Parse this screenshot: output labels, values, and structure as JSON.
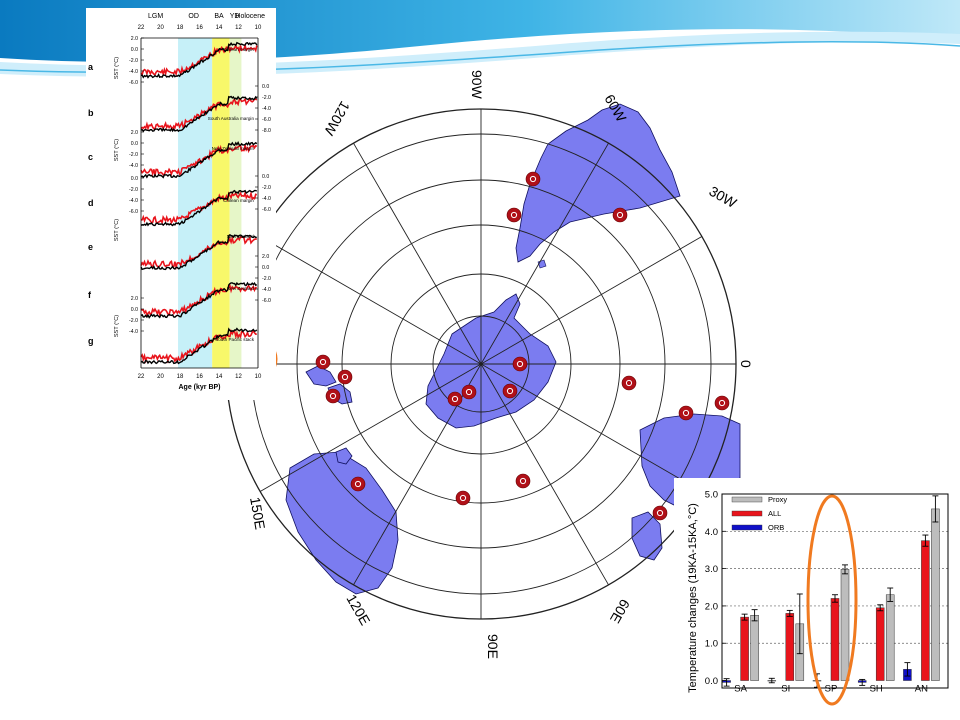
{
  "map": {
    "lon_labels": [
      "90W",
      "60W",
      "30W",
      "0",
      "60E",
      "90E",
      "120E",
      "150E",
      "120W"
    ],
    "sites": [
      {
        "name": "site-1"
      },
      {
        "name": "site-2"
      },
      {
        "name": "site-3"
      },
      {
        "name": "site-4"
      },
      {
        "name": "site-5"
      },
      {
        "name": "site-6"
      },
      {
        "name": "site-7"
      },
      {
        "name": "site-8"
      },
      {
        "name": "site-9"
      },
      {
        "name": "site-10"
      },
      {
        "name": "site-11"
      },
      {
        "name": "site-12"
      },
      {
        "name": "site-13"
      },
      {
        "name": "site-14"
      },
      {
        "name": "site-15"
      },
      {
        "name": "site-16"
      },
      {
        "name": "site-17"
      }
    ],
    "colors": {
      "land": "#7b7cf0",
      "sites": "#b01018",
      "highlight": "#f07a20"
    }
  },
  "stack": {
    "period_labels": [
      "LGM",
      "OD",
      "BA",
      "YD",
      "Holocene"
    ],
    "top_ticks": [
      "22",
      "20",
      "18",
      "16",
      "14",
      "12",
      "10"
    ],
    "bottom_ticks": [
      "22",
      "20",
      "18",
      "16",
      "14",
      "12",
      "10"
    ],
    "xlabel": "Age (kyr BP)",
    "panel_letters": [
      "a",
      "b",
      "c",
      "d",
      "e",
      "f",
      "g"
    ],
    "panel_labels": [
      "Chilean margin",
      "South Australia margin",
      "New Zealand margin",
      "Chilean margin",
      "New Zealand",
      "New Zealand",
      "South Pacific stack"
    ],
    "ylabel": "SST (°C)",
    "left_axes": [
      {
        "ticks": [
          "2.0",
          "0.0",
          "-2.0",
          "-4.0",
          "-6.0"
        ]
      },
      {
        "ticks": [
          "2.0",
          "0.0",
          "-2.0",
          "-4.0"
        ]
      },
      {
        "ticks": [
          "0.0",
          "-2.0",
          "-4.0",
          "-6.0"
        ]
      },
      {
        "ticks": [
          "2.0",
          "0.0",
          "-2.0",
          "-4.0"
        ]
      }
    ],
    "right_axes": [
      {
        "ticks": [
          "0.0",
          "-2.0",
          "-4.0",
          "-6.0",
          "-8.0"
        ]
      },
      {
        "ticks": [
          "0.0",
          "-2.0",
          "-4.0",
          "-6.0"
        ]
      },
      {
        "ticks": [
          "2.0",
          "0.0",
          "-2.0",
          "-4.0",
          "-6.0"
        ]
      }
    ],
    "colors": {
      "model": "#e8141c",
      "proxy": "#000000",
      "lgm_shade": "#c6f0f8",
      "ba_shade": "#f8f86a",
      "yd_shade": "#e6f6c8"
    }
  },
  "chart_data": {
    "type": "bar",
    "categories": [
      "SA",
      "SI",
      "SP",
      "SH",
      "AN"
    ],
    "ylabel": "Temperature changes (19KA-15KA,°C)",
    "ylim": [
      -0.2,
      5.0
    ],
    "yticks": [
      "0.0",
      "1.0",
      "2.0",
      "3.0",
      "4.0",
      "5.0"
    ],
    "legend_placement": "top-left",
    "series": [
      {
        "name": "Proxy",
        "color": "#bdbdbd",
        "values": [
          1.75,
          1.52,
          2.98,
          2.3,
          4.6
        ],
        "err": [
          0.15,
          0.8,
          0.12,
          0.18,
          0.35
        ]
      },
      {
        "name": "ALL",
        "color": "#e8141c",
        "values": [
          1.7,
          1.8,
          2.2,
          1.95,
          3.75
        ],
        "err": [
          0.08,
          0.08,
          0.1,
          0.08,
          0.15
        ]
      },
      {
        "name": "ORB",
        "color": "#1010c8",
        "values": [
          -0.05,
          0.0,
          0.0,
          -0.05,
          0.3
        ],
        "err": [
          0.1,
          0.06,
          0.18,
          0.08,
          0.18
        ]
      }
    ],
    "grid": "dashed horizontal at 1.0, 2.0, 3.0, 4.0",
    "highlight_category": "SP"
  }
}
